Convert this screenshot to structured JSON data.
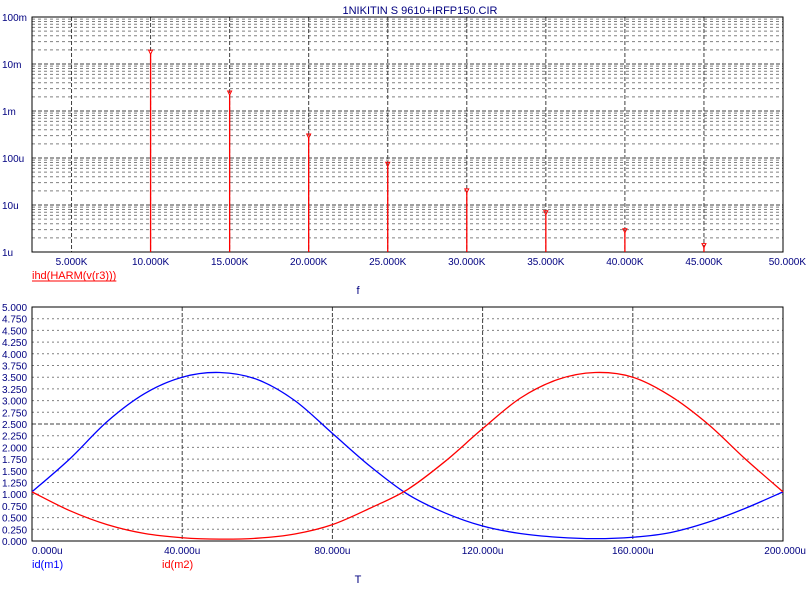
{
  "title": "1NIKITIN S 9610+IRFP150.CIR",
  "colors": {
    "text": "#000080",
    "series_red": "#ff0000",
    "series_blue": "#0000ff",
    "grid_major": "#404040",
    "grid_minor": "#808080"
  },
  "chart_data": [
    {
      "type": "bar",
      "title": "1NIKITIN S 9610+IRFP150.CIR",
      "xlabel": "f",
      "ylabel": "",
      "yscale": "log",
      "xlim": [
        2500,
        50000
      ],
      "ylim": [
        1e-06,
        0.1
      ],
      "x_tick_values": [
        5000,
        10000,
        15000,
        20000,
        25000,
        30000,
        35000,
        40000,
        45000,
        50000
      ],
      "x_ticks": [
        "5.000K",
        "10.000K",
        "15.000K",
        "20.000K",
        "25.000K",
        "30.000K",
        "35.000K",
        "40.000K",
        "45.000K",
        "50.000K"
      ],
      "y_tick_values": [
        1e-06,
        1e-05,
        0.0001,
        0.001,
        0.01,
        0.1
      ],
      "y_ticks": [
        "1u",
        "10u",
        "100u",
        "1m",
        "10m",
        "100m"
      ],
      "grid": true,
      "series": [
        {
          "name": "ihd(HARM(v(r3)))",
          "color": "#ff0000",
          "x": [
            10000,
            15000,
            20000,
            25000,
            30000,
            35000,
            40000,
            45000
          ],
          "values": [
            0.017,
            0.0023,
            0.00028,
            7e-05,
            1.9e-05,
            6.5e-06,
            2.7e-06,
            1.3e-06
          ]
        }
      ]
    },
    {
      "type": "line",
      "xlabel": "T",
      "ylabel": "",
      "xlim": [
        0,
        200
      ],
      "ylim": [
        0,
        5
      ],
      "x_tick_values": [
        0,
        40,
        80,
        120,
        160,
        200
      ],
      "x_ticks": [
        "0.000u",
        "40.000u",
        "80.000u",
        "120.000u",
        "160.000u",
        "200.000u"
      ],
      "y_tick_values": [
        0,
        0.25,
        0.5,
        0.75,
        1,
        1.25,
        1.5,
        1.75,
        2,
        2.25,
        2.5,
        2.75,
        3,
        3.25,
        3.5,
        3.75,
        4,
        4.25,
        4.5,
        4.75,
        5
      ],
      "y_ticks": [
        "0.000",
        "0.250",
        "0.500",
        "0.750",
        "1.000",
        "1.250",
        "1.500",
        "1.750",
        "2.000",
        "2.250",
        "2.500",
        "2.750",
        "3.000",
        "3.250",
        "3.500",
        "3.750",
        "4.000",
        "4.250",
        "4.500",
        "4.750",
        "5.000"
      ],
      "grid": true,
      "x": [
        0,
        10,
        20,
        30,
        40,
        50,
        60,
        70,
        80,
        90,
        100,
        110,
        120,
        130,
        140,
        150,
        160,
        170,
        180,
        190,
        200
      ],
      "series": [
        {
          "name": "id(m1)",
          "color": "#0000ff",
          "values": [
            1.05,
            1.75,
            2.55,
            3.15,
            3.5,
            3.6,
            3.45,
            3.0,
            2.3,
            1.6,
            1.0,
            0.6,
            0.32,
            0.16,
            0.08,
            0.05,
            0.08,
            0.18,
            0.4,
            0.7,
            1.05
          ]
        },
        {
          "name": "id(m2)",
          "color": "#ff0000",
          "values": [
            1.05,
            0.65,
            0.35,
            0.16,
            0.07,
            0.04,
            0.06,
            0.15,
            0.35,
            0.7,
            1.1,
            1.7,
            2.4,
            3.05,
            3.45,
            3.6,
            3.5,
            3.1,
            2.5,
            1.75,
            1.05
          ]
        }
      ]
    }
  ]
}
